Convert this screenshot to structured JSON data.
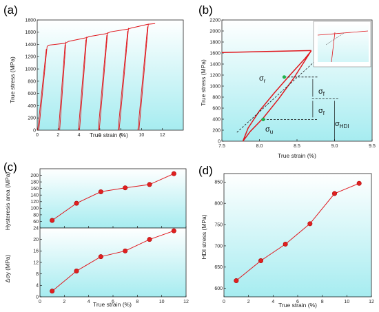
{
  "panels": {
    "a": {
      "label": "(a)"
    },
    "b": {
      "label": "(b)"
    },
    "c": {
      "label": "(c)"
    },
    "d": {
      "label": "(d)"
    }
  },
  "colors": {
    "curve": "#e0151b",
    "marker": "#e02020",
    "green": "#22b14c",
    "bg_top": "#ffffff",
    "bg_bottom": "#a6ecf0"
  },
  "chart_data": [
    {
      "id": "a",
      "type": "line",
      "xlabel": "True strain (%)",
      "ylabel": "True stress (MPa)",
      "xlim": [
        0,
        14
      ],
      "ylim": [
        0,
        1800
      ],
      "xticks": [
        0,
        2,
        4,
        6,
        8,
        10,
        12
      ],
      "yticks": [
        0,
        200,
        400,
        600,
        800,
        1000,
        1200,
        1400,
        1600,
        1800
      ],
      "envelope": {
        "x": [
          0.95,
          1.2,
          2.7,
          3.0,
          4.7,
          5.0,
          6.7,
          7.0,
          8.7,
          9.0,
          10.6,
          11.3
        ],
        "y": [
          1370,
          1390,
          1420,
          1450,
          1510,
          1530,
          1580,
          1605,
          1650,
          1668,
          1730,
          1740
        ]
      },
      "unload_loops": [
        {
          "x_end": 0.95,
          "y_end": 1370,
          "x_zero": 0.1
        },
        {
          "x_end": 2.75,
          "y_end": 1445,
          "x_zero": 2.1
        },
        {
          "x_end": 4.75,
          "y_end": 1525,
          "x_zero": 4.0
        },
        {
          "x_end": 6.75,
          "y_end": 1598,
          "x_zero": 5.9
        },
        {
          "x_end": 8.75,
          "y_end": 1668,
          "x_zero": 7.8
        },
        {
          "x_end": 10.65,
          "y_end": 1738,
          "x_zero": 9.7
        }
      ]
    },
    {
      "id": "b",
      "type": "line",
      "xlabel": "True strain (%)",
      "ylabel": "True stress (MPa)",
      "xlim": [
        7.5,
        9.5
      ],
      "ylim": [
        0,
        2200
      ],
      "xticks": [
        7.5,
        8.0,
        8.5,
        9.0,
        9.5
      ],
      "yticks": [
        0,
        200,
        400,
        600,
        800,
        1000,
        1200,
        1400,
        1600,
        1800,
        2000,
        2200
      ],
      "prior_curve": {
        "x": [
          7.5,
          8.69
        ],
        "y": [
          1610,
          1645
        ]
      },
      "loop_unload": {
        "x": [
          8.69,
          8.6,
          8.4,
          8.2,
          8.0,
          7.85,
          7.78
        ],
        "y": [
          1640,
          1490,
          1190,
          880,
          550,
          240,
          0
        ]
      },
      "loop_reload": {
        "x": [
          7.78,
          7.88,
          8.05,
          8.25,
          8.45,
          8.6,
          8.69
        ],
        "y": [
          0,
          180,
          420,
          760,
          1130,
          1450,
          1645
        ]
      },
      "dashed_slope": {
        "x": [
          7.7,
          8.72
        ],
        "y": [
          160,
          1430
        ]
      },
      "annotations": {
        "sigma_r": "σr",
        "sigma_f": "σf",
        "sigma_u": "σu",
        "sigma_hdi": "σHDI"
      },
      "sigma_r_point": {
        "x": 8.33,
        "y": 1165
      },
      "sigma_u_point": {
        "x": 8.05,
        "y": 395
      },
      "hdi_level": 770
    },
    {
      "id": "c_top",
      "type": "line",
      "xlabel": "",
      "ylabel": "Hysteresis area (MPa)",
      "xlim": [
        0,
        12
      ],
      "ylim": [
        40,
        220
      ],
      "yticks": [
        60,
        80,
        100,
        120,
        140,
        160,
        180,
        200
      ],
      "x": [
        1,
        3,
        5,
        7,
        9,
        11
      ],
      "y": [
        63,
        115,
        150,
        162,
        172,
        205
      ]
    },
    {
      "id": "c_bottom",
      "type": "line",
      "xlabel": "True strain (%)",
      "ylabel": "Δσy (MPa)",
      "xlim": [
        0,
        12
      ],
      "ylim": [
        0,
        24
      ],
      "xticks": [
        0,
        2,
        4,
        6,
        8,
        10,
        12
      ],
      "yticks": [
        0,
        4,
        8,
        12,
        16,
        20,
        24
      ],
      "x": [
        1,
        3,
        5,
        7,
        9,
        11
      ],
      "y": [
        2,
        9,
        14,
        16,
        20,
        23
      ]
    },
    {
      "id": "d",
      "type": "line",
      "xlabel": "True strain (%)",
      "ylabel": "HDI stress (MPa)",
      "xlim": [
        0,
        12
      ],
      "ylim": [
        580,
        870
      ],
      "xticks": [
        0,
        2,
        4,
        6,
        8,
        10,
        12
      ],
      "yticks": [
        600,
        650,
        700,
        750,
        800,
        850
      ],
      "x": [
        1,
        3,
        5,
        7,
        9,
        11
      ],
      "y": [
        618,
        665,
        704,
        752,
        823,
        847
      ]
    }
  ]
}
